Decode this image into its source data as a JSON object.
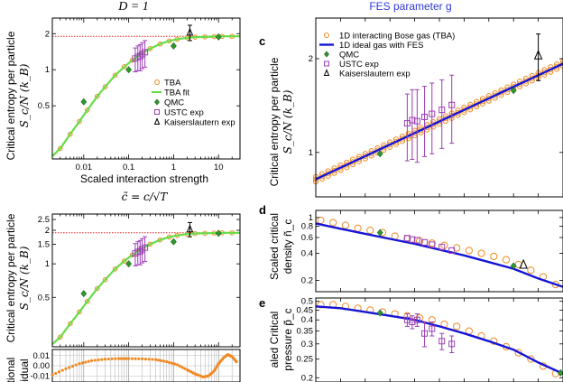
{
  "figure": {
    "left_title": "D = 1",
    "right_title": "FES parameter g",
    "panel_labels": {
      "c": "c",
      "d": "d",
      "e": "e"
    },
    "entropy_ylabel": "Critical entropy per particle",
    "entropy_ylabel_math": "S_c/N  (k_B)",
    "x_label": "Scaled interaction strength",
    "x_label_math": "c̃ = c/√T",
    "residual_ylabel_left": "tional",
    "residual_ylabel_right": "idual",
    "density_ylabel_1": "Scaled critical",
    "density_ylabel_2": "density ñ_c",
    "pressure_ylabel_1": "aled Critical",
    "pressure_ylabel_2": "pressure p̃_c"
  },
  "chart_data": [
    {
      "id": "top-left",
      "type": "line",
      "xscale": "log",
      "yscale": "log",
      "xlim": [
        0.002,
        30
      ],
      "ylim": [
        0.18,
        2.7
      ],
      "xticks": [
        0.01,
        0.1,
        1,
        10
      ],
      "xtick_labels": [
        "0.01",
        "0.1",
        "1",
        "10"
      ],
      "yticks": [
        0.5,
        1,
        2
      ],
      "ytick_labels": [
        "0.5",
        "1",
        "2"
      ],
      "reference_line": {
        "y": 1.9,
        "color": "#e02020"
      },
      "series": [
        {
          "name": "TBA",
          "marker": "circle",
          "color": "#f08a24",
          "x": [
            0.003,
            0.005,
            0.008,
            0.012,
            0.02,
            0.03,
            0.05,
            0.08,
            0.12,
            0.2,
            0.3,
            0.5,
            0.8,
            1.2,
            2,
            3,
            5,
            8,
            12,
            20
          ],
          "y": [
            0.22,
            0.29,
            0.37,
            0.46,
            0.6,
            0.72,
            0.9,
            1.06,
            1.2,
            1.38,
            1.5,
            1.64,
            1.74,
            1.8,
            1.85,
            1.87,
            1.88,
            1.89,
            1.9,
            1.9
          ]
        },
        {
          "name": "TBA fit",
          "marker": "line",
          "color": "#66dd44",
          "x": [
            0.002,
            0.003,
            0.005,
            0.008,
            0.012,
            0.02,
            0.03,
            0.05,
            0.08,
            0.12,
            0.2,
            0.3,
            0.5,
            0.8,
            1.2,
            2,
            3,
            5,
            8,
            12,
            20,
            30
          ],
          "y": [
            0.19,
            0.22,
            0.29,
            0.37,
            0.46,
            0.6,
            0.72,
            0.9,
            1.06,
            1.2,
            1.38,
            1.5,
            1.64,
            1.74,
            1.8,
            1.85,
            1.87,
            1.88,
            1.89,
            1.9,
            1.9,
            1.9
          ]
        },
        {
          "name": "QMC",
          "marker": "diamond",
          "color": "#2e9a2e",
          "x": [
            0.01,
            0.1,
            1,
            10
          ],
          "y": [
            0.54,
            1.0,
            1.58,
            1.88
          ]
        },
        {
          "name": "USTC exp",
          "marker": "square",
          "color": "#9b3fb5",
          "x": [
            0.14,
            0.16,
            0.18,
            0.2,
            0.23
          ],
          "y": [
            1.24,
            1.28,
            1.3,
            1.35,
            1.4
          ],
          "yerr": [
            0.28,
            0.3,
            0.32,
            0.33,
            0.35
          ]
        },
        {
          "name": "Kaiserslautern exp",
          "marker": "triangle",
          "color": "#000000",
          "x": [
            2.3
          ],
          "y": [
            2.05
          ],
          "yerr": [
            0.3
          ]
        }
      ]
    },
    {
      "id": "bottom-left",
      "type": "line",
      "xscale": "log",
      "yscale": "log",
      "xlim": [
        0.002,
        30
      ],
      "ylim": [
        0.18,
        2.8
      ],
      "yticks": [
        0.5,
        1,
        1.5,
        2,
        2.5
      ],
      "ytick_labels": [
        "0.5",
        "1",
        "1.5",
        "2",
        "2.5"
      ],
      "reference_line": {
        "y": 1.9,
        "color": "#e02020"
      },
      "residual": {
        "yticks": [
          0.01,
          0.0,
          -0.01
        ],
        "ytick_labels": [
          "0.01",
          "0.00",
          "-0.01"
        ],
        "ylim": [
          -0.016,
          0.016
        ],
        "x": [
          0.002,
          0.004,
          0.008,
          0.015,
          0.03,
          0.06,
          0.1,
          0.2,
          0.4,
          0.7,
          1.2,
          2,
          3,
          4.5,
          6,
          8,
          10,
          13,
          16,
          20,
          25
        ],
        "y": [
          -0.009,
          -0.003,
          0.002,
          0.005,
          0.0065,
          0.007,
          0.007,
          0.0068,
          0.006,
          0.004,
          0.001,
          -0.004,
          -0.008,
          -0.011,
          -0.01,
          -0.005,
          0.002,
          0.008,
          0.011,
          0.009,
          0.004
        ]
      }
    },
    {
      "id": "c",
      "type": "line",
      "yscale": "log",
      "xlim": [
        0,
        1
      ],
      "ylim": [
        0.72,
        2.7
      ],
      "yticks": [
        1,
        2
      ],
      "ytick_labels": [
        "1",
        "2"
      ],
      "series": [
        {
          "name": "1D interacting Bose gas (TBA)",
          "marker": "circle",
          "color": "#f08a24"
        },
        {
          "name": "1D ideal gas with FES",
          "marker": "line",
          "color": "#1515d6"
        },
        {
          "name": "QMC",
          "marker": "diamond",
          "color": "#2e9a2e",
          "x": [
            0.26,
            0.8
          ],
          "y": [
            0.99,
            1.58
          ]
        },
        {
          "name": "USTC exp",
          "marker": "square",
          "color": "#9b3fb5",
          "x": [
            0.37,
            0.39,
            0.41,
            0.44,
            0.47,
            0.51,
            0.55
          ],
          "y": [
            1.24,
            1.27,
            1.26,
            1.3,
            1.33,
            1.37,
            1.42
          ],
          "yerr": [
            0.3,
            0.32,
            0.33,
            0.33,
            0.34,
            0.34,
            0.35
          ]
        },
        {
          "name": "Kaiserslautern exp",
          "marker": "triangle",
          "color": "#000000",
          "x": [
            0.9
          ],
          "y": [
            2.05
          ],
          "yerr": [
            0.35
          ]
        }
      ]
    },
    {
      "id": "d",
      "type": "line",
      "yscale": "log",
      "xlim": [
        0,
        1
      ],
      "ylim": [
        0.15,
        1.2
      ],
      "yticks": [
        0.2,
        0.4,
        0.6,
        0.8,
        1
      ],
      "ytick_labels": [
        "0.2",
        "0.4",
        "0.6",
        "0.8",
        "1"
      ],
      "series": [
        {
          "name": "TBA",
          "color": "#f08a24",
          "x": [
            0.02,
            0.07,
            0.12,
            0.17,
            0.22,
            0.27,
            0.32,
            0.37,
            0.42,
            0.47,
            0.52,
            0.57,
            0.62,
            0.67,
            0.72,
            0.77,
            0.82,
            0.87,
            0.92,
            0.97
          ],
          "y": [
            0.93,
            0.88,
            0.82,
            0.76,
            0.72,
            0.68,
            0.62,
            0.58,
            0.55,
            0.52,
            0.49,
            0.46,
            0.43,
            0.4,
            0.37,
            0.34,
            0.3,
            0.26,
            0.22,
            0.18
          ]
        },
        {
          "name": "FES",
          "color": "#1515d6",
          "x": [
            0,
            0.1,
            0.2,
            0.3,
            0.4,
            0.5,
            0.6,
            0.7,
            0.8,
            0.9,
            1.0
          ],
          "y": [
            0.86,
            0.75,
            0.66,
            0.58,
            0.51,
            0.44,
            0.38,
            0.32,
            0.27,
            0.21,
            0.17
          ]
        },
        {
          "name": "QMC",
          "color": "#2e9a2e",
          "x": [
            0.26,
            0.8
          ],
          "y": [
            0.68,
            0.29
          ]
        },
        {
          "name": "USTC exp",
          "color": "#9b3fb5",
          "x": [
            0.37,
            0.39,
            0.41,
            0.44,
            0.47,
            0.51,
            0.55
          ],
          "y": [
            0.59,
            0.57,
            0.56,
            0.53,
            0.5,
            0.47,
            0.43
          ]
        },
        {
          "name": "Kaiserslautern exp",
          "color": "#000000",
          "x": [
            0.84
          ],
          "y": [
            0.3
          ]
        }
      ]
    },
    {
      "id": "e",
      "type": "line",
      "yscale": "log",
      "xlim": [
        0,
        1
      ],
      "ylim": [
        0.19,
        0.52
      ],
      "yticks": [
        0.2,
        0.25,
        0.3,
        0.35,
        0.4,
        0.45,
        0.5
      ],
      "ytick_labels": [
        "0.2",
        "0.25",
        "0.3",
        "0.35",
        "0.4",
        "0.45",
        "0.5"
      ],
      "series": [
        {
          "name": "TBA",
          "color": "#f08a24",
          "x": [
            0.02,
            0.07,
            0.12,
            0.17,
            0.22,
            0.27,
            0.32,
            0.37,
            0.42,
            0.47,
            0.52,
            0.57,
            0.62,
            0.67,
            0.72,
            0.77,
            0.82,
            0.87,
            0.92,
            0.97
          ],
          "y": [
            0.48,
            0.48,
            0.47,
            0.46,
            0.45,
            0.44,
            0.43,
            0.42,
            0.41,
            0.4,
            0.38,
            0.37,
            0.35,
            0.33,
            0.31,
            0.29,
            0.27,
            0.25,
            0.23,
            0.21
          ]
        },
        {
          "name": "FES",
          "color": "#1515d6",
          "x": [
            0,
            0.1,
            0.2,
            0.3,
            0.4,
            0.5,
            0.6,
            0.7,
            0.8,
            0.9,
            1.0
          ],
          "y": [
            0.47,
            0.46,
            0.44,
            0.42,
            0.4,
            0.37,
            0.34,
            0.31,
            0.28,
            0.24,
            0.21
          ]
        },
        {
          "name": "QMC",
          "color": "#2e9a2e",
          "x": [
            0.26,
            0.99
          ],
          "y": [
            0.435,
            0.212
          ]
        },
        {
          "name": "USTC exp",
          "color": "#9b3fb5",
          "x": [
            0.37,
            0.39,
            0.41,
            0.44,
            0.47,
            0.51,
            0.55
          ],
          "y": [
            0.4,
            0.39,
            0.4,
            0.34,
            0.36,
            0.31,
            0.3
          ],
          "yerr": [
            0.03,
            0.03,
            0.03,
            0.05,
            0.03,
            0.03,
            0.03
          ]
        }
      ]
    }
  ]
}
